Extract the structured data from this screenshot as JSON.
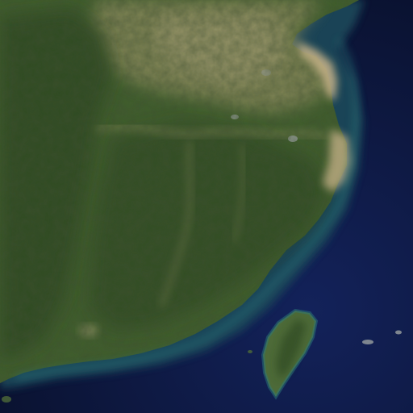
{
  "map": {
    "type": "satellite-imagery",
    "text_labels": [],
    "colors": {
      "deep_ocean": "#0a1230",
      "mid_ocean": "#13225a",
      "shelf_water": "#1a4a5a",
      "shallow_coast": "#2b7a7a",
      "sediment_water": "#c9b48a",
      "forest_dark": "#2e4a22",
      "forest_mid": "#3f5e2c",
      "plain_tan": "#8a8a5c",
      "plain_light": "#a39c72",
      "urban_grey": "#9aa0a0",
      "island_green": "#4d6a38"
    }
  }
}
